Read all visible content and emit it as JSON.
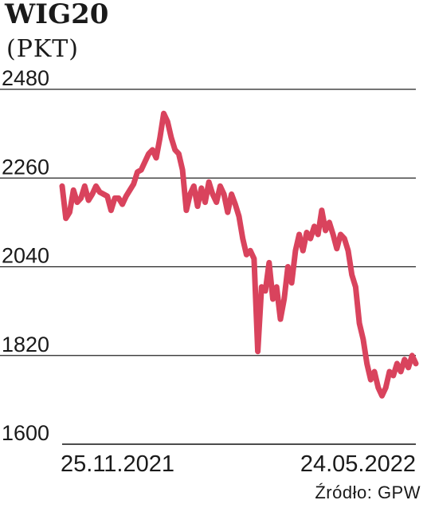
{
  "chart_data": {
    "type": "line",
    "title": "WIG20",
    "subtitle": "(PKT)",
    "source": "Źródło: GPW",
    "ylim": [
      1600,
      2480
    ],
    "yticks": [
      1600,
      1820,
      2040,
      2260,
      2480
    ],
    "xtick_labels": [
      "25.11.2021",
      "24.05.2022"
    ],
    "x_range": [
      "2021-11-25",
      "2022-05-24"
    ],
    "grid": "horizontal",
    "line_color": "#d9435d",
    "series": [
      {
        "values": [
          2240,
          2160,
          2175,
          2230,
          2200,
          2210,
          2240,
          2205,
          2220,
          2240,
          2225,
          2220,
          2215,
          2180,
          2210,
          2210,
          2195,
          2215,
          2230,
          2245,
          2275,
          2280,
          2300,
          2320,
          2330,
          2310,
          2360,
          2420,
          2400,
          2360,
          2330,
          2320,
          2280,
          2180,
          2220,
          2240,
          2190,
          2235,
          2200,
          2250,
          2220,
          2200,
          2240,
          2220,
          2175,
          2220,
          2195,
          2165,
          2110,
          2070,
          2080,
          2060,
          1830,
          1990,
          1980,
          2050,
          1960,
          1990,
          1910,
          1960,
          2040,
          2000,
          2080,
          2120,
          2080,
          2125,
          2110,
          2140,
          2120,
          2180,
          2130,
          2150,
          2120,
          2085,
          2120,
          2110,
          2080,
          2020,
          1990,
          1900,
          1860,
          1800,
          1760,
          1780,
          1740,
          1720,
          1740,
          1780,
          1770,
          1800,
          1780,
          1810,
          1790,
          1820,
          1800
        ]
      }
    ]
  }
}
